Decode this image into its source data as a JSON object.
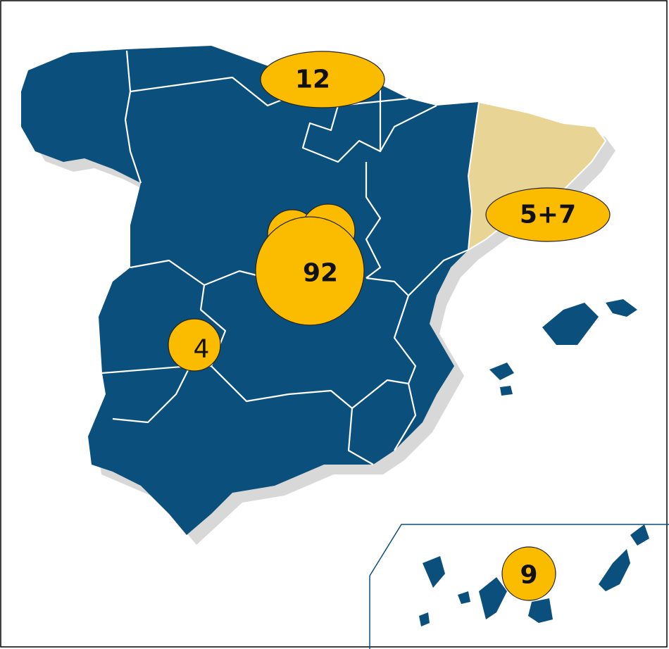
{
  "markers": [
    {
      "label": "12"
    },
    {
      "label": "5+7"
    },
    {
      "label": "92"
    },
    {
      "label": "4"
    },
    {
      "label": "9"
    }
  ]
}
